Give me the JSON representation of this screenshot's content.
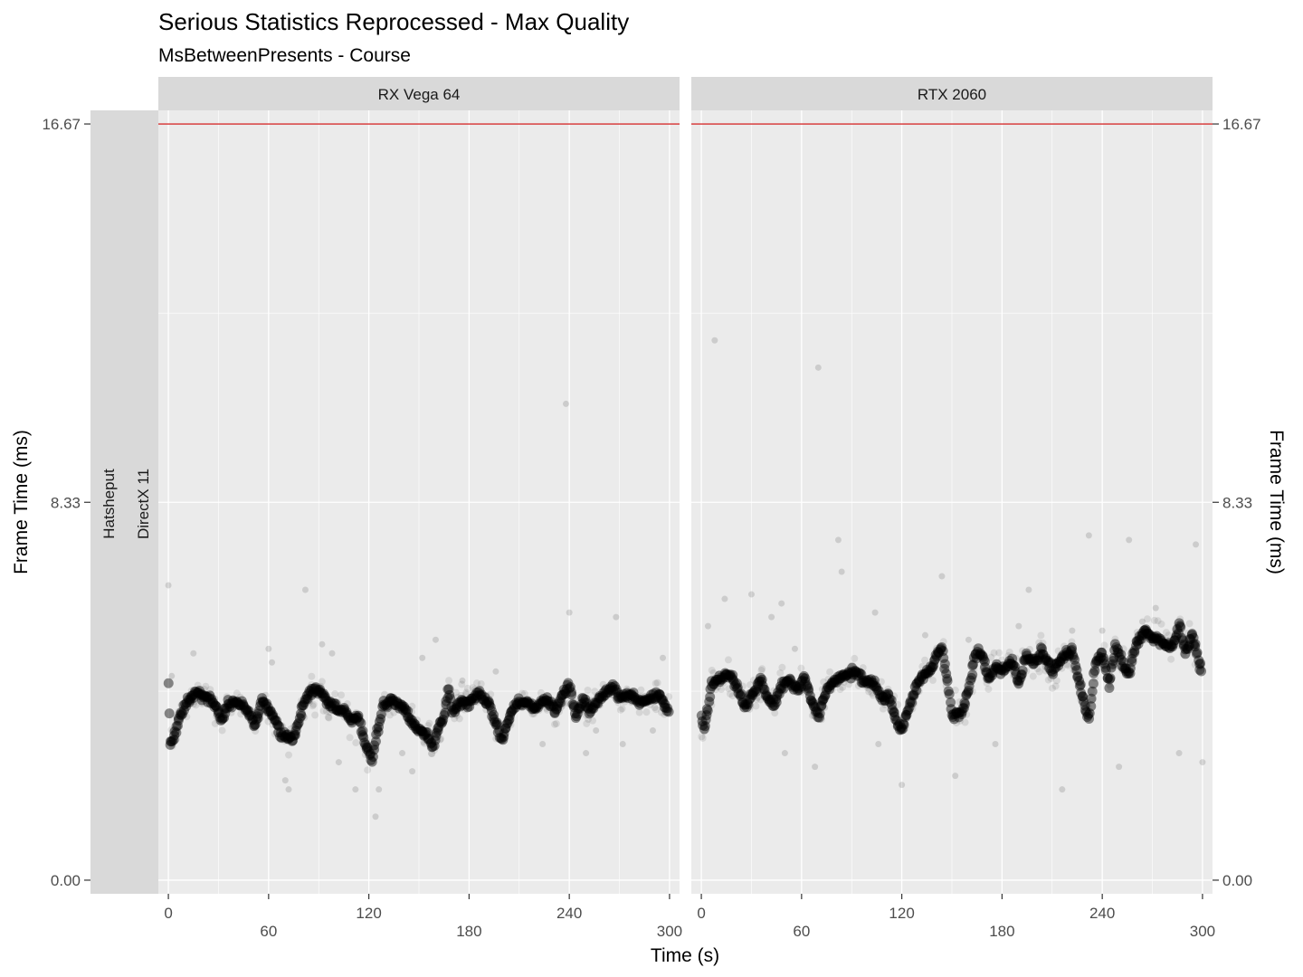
{
  "chart_data": {
    "type": "scatter",
    "title": "Serious Statistics Reprocessed - Max Quality",
    "subtitle": "MsBetweenPresents - Course",
    "xlabel": "Time (s)",
    "ylabel": "Frame Time (ms)",
    "ylabel_right": "Frame Time (ms)",
    "xlim": [
      -6,
      306
    ],
    "ylim": [
      -0.3,
      16.97
    ],
    "x_ticks": [
      "0",
      "60",
      "120",
      "180",
      "240",
      "300"
    ],
    "y_ticks": [
      "0.00",
      "8.33",
      "16.67"
    ],
    "reference_line": {
      "y": 16.67,
      "color": "#cc0000"
    },
    "row_strip": [
      "Hatsheput",
      "DirectX 11"
    ],
    "point_color": "#000000",
    "panels": [
      {
        "name": "RX Vega 64",
        "trend": [
          [
            0,
            4.3
          ],
          [
            1,
            3.0
          ],
          [
            3,
            3.1
          ],
          [
            5,
            3.4
          ],
          [
            8,
            3.7
          ],
          [
            12,
            4.0
          ],
          [
            18,
            4.1
          ],
          [
            24,
            4.0
          ],
          [
            28,
            3.9
          ],
          [
            32,
            3.5
          ],
          [
            36,
            3.9
          ],
          [
            42,
            3.9
          ],
          [
            48,
            3.7
          ],
          [
            52,
            3.4
          ],
          [
            56,
            4.0
          ],
          [
            60,
            3.8
          ],
          [
            64,
            3.5
          ],
          [
            68,
            3.2
          ],
          [
            72,
            3.1
          ],
          [
            76,
            3.2
          ],
          [
            80,
            3.8
          ],
          [
            84,
            4.1
          ],
          [
            90,
            4.2
          ],
          [
            96,
            3.9
          ],
          [
            100,
            3.8
          ],
          [
            106,
            3.7
          ],
          [
            110,
            3.5
          ],
          [
            114,
            3.6
          ],
          [
            118,
            3.0
          ],
          [
            122,
            2.6
          ],
          [
            124,
            3.1
          ],
          [
            128,
            3.8
          ],
          [
            134,
            4.0
          ],
          [
            140,
            3.8
          ],
          [
            146,
            3.5
          ],
          [
            150,
            3.3
          ],
          [
            155,
            3.2
          ],
          [
            158,
            2.9
          ],
          [
            160,
            3.2
          ],
          [
            164,
            3.5
          ],
          [
            168,
            4.2
          ],
          [
            170,
            3.7
          ],
          [
            174,
            3.9
          ],
          [
            180,
            3.9
          ],
          [
            186,
            4.1
          ],
          [
            192,
            3.9
          ],
          [
            196,
            3.4
          ],
          [
            200,
            3.1
          ],
          [
            204,
            3.6
          ],
          [
            208,
            3.9
          ],
          [
            214,
            3.9
          ],
          [
            220,
            3.8
          ],
          [
            226,
            4.0
          ],
          [
            232,
            3.7
          ],
          [
            236,
            4.1
          ],
          [
            240,
            4.3
          ],
          [
            244,
            3.6
          ],
          [
            248,
            4.0
          ],
          [
            252,
            3.7
          ],
          [
            256,
            3.9
          ],
          [
            260,
            4.1
          ],
          [
            266,
            4.3
          ],
          [
            270,
            4.0
          ],
          [
            276,
            4.1
          ],
          [
            282,
            3.9
          ],
          [
            288,
            4.0
          ],
          [
            294,
            4.1
          ],
          [
            300,
            3.7
          ]
        ],
        "outliers": [
          [
            0,
            6.5
          ],
          [
            2,
            4.5
          ],
          [
            15,
            5.0
          ],
          [
            28,
            4.0
          ],
          [
            60,
            5.1
          ],
          [
            62,
            4.8
          ],
          [
            70,
            2.2
          ],
          [
            72,
            2.0
          ],
          [
            82,
            6.4
          ],
          [
            92,
            5.2
          ],
          [
            98,
            5.0
          ],
          [
            102,
            2.6
          ],
          [
            106,
            3.6
          ],
          [
            112,
            2.0
          ],
          [
            124,
            1.4
          ],
          [
            126,
            2.0
          ],
          [
            140,
            2.8
          ],
          [
            146,
            2.4
          ],
          [
            152,
            4.9
          ],
          [
            160,
            5.3
          ],
          [
            176,
            4.4
          ],
          [
            196,
            4.6
          ],
          [
            224,
            3.0
          ],
          [
            238,
            10.5
          ],
          [
            240,
            5.9
          ],
          [
            250,
            2.8
          ],
          [
            256,
            3.3
          ],
          [
            268,
            5.8
          ],
          [
            272,
            3.0
          ],
          [
            290,
            3.3
          ],
          [
            296,
            4.9
          ]
        ]
      },
      {
        "name": "RTX 2060",
        "trend": [
          [
            0,
            3.6
          ],
          [
            2,
            3.4
          ],
          [
            4,
            3.8
          ],
          [
            6,
            4.3
          ],
          [
            10,
            4.4
          ],
          [
            14,
            4.5
          ],
          [
            18,
            4.5
          ],
          [
            22,
            4.2
          ],
          [
            26,
            3.8
          ],
          [
            30,
            4.1
          ],
          [
            36,
            4.4
          ],
          [
            40,
            4.0
          ],
          [
            44,
            3.9
          ],
          [
            48,
            4.3
          ],
          [
            52,
            4.4
          ],
          [
            58,
            4.2
          ],
          [
            62,
            4.5
          ],
          [
            66,
            3.9
          ],
          [
            70,
            3.6
          ],
          [
            72,
            3.9
          ],
          [
            76,
            4.2
          ],
          [
            80,
            4.4
          ],
          [
            86,
            4.5
          ],
          [
            92,
            4.6
          ],
          [
            98,
            4.4
          ],
          [
            104,
            4.3
          ],
          [
            108,
            4.0
          ],
          [
            112,
            4.1
          ],
          [
            116,
            3.6
          ],
          [
            120,
            3.3
          ],
          [
            124,
            3.8
          ],
          [
            130,
            4.4
          ],
          [
            136,
            4.6
          ],
          [
            140,
            4.9
          ],
          [
            144,
            5.1
          ],
          [
            148,
            4.2
          ],
          [
            150,
            3.6
          ],
          [
            156,
            3.7
          ],
          [
            160,
            4.2
          ],
          [
            164,
            5.0
          ],
          [
            168,
            5.0
          ],
          [
            172,
            4.4
          ],
          [
            176,
            4.7
          ],
          [
            180,
            4.6
          ],
          [
            186,
            4.9
          ],
          [
            190,
            4.3
          ],
          [
            194,
            4.9
          ],
          [
            200,
            4.8
          ],
          [
            204,
            5.1
          ],
          [
            210,
            4.6
          ],
          [
            216,
            4.9
          ],
          [
            222,
            5.1
          ],
          [
            226,
            4.4
          ],
          [
            230,
            3.8
          ],
          [
            232,
            3.5
          ],
          [
            236,
            4.8
          ],
          [
            240,
            5.0
          ],
          [
            244,
            4.3
          ],
          [
            248,
            5.2
          ],
          [
            252,
            4.8
          ],
          [
            256,
            4.5
          ],
          [
            260,
            5.2
          ],
          [
            266,
            5.5
          ],
          [
            270,
            5.3
          ],
          [
            274,
            5.3
          ],
          [
            278,
            5.2
          ],
          [
            282,
            5.1
          ],
          [
            286,
            5.6
          ],
          [
            290,
            5.0
          ],
          [
            294,
            5.4
          ],
          [
            298,
            4.8
          ],
          [
            300,
            4.6
          ]
        ],
        "outliers": [
          [
            4,
            5.6
          ],
          [
            8,
            11.9
          ],
          [
            14,
            6.2
          ],
          [
            30,
            6.3
          ],
          [
            42,
            5.8
          ],
          [
            48,
            6.1
          ],
          [
            50,
            2.8
          ],
          [
            56,
            5.1
          ],
          [
            68,
            2.5
          ],
          [
            70,
            11.3
          ],
          [
            74,
            3.8
          ],
          [
            82,
            7.5
          ],
          [
            84,
            6.8
          ],
          [
            104,
            5.9
          ],
          [
            106,
            3.0
          ],
          [
            120,
            2.1
          ],
          [
            134,
            5.4
          ],
          [
            144,
            6.7
          ],
          [
            152,
            2.3
          ],
          [
            160,
            5.3
          ],
          [
            176,
            3.0
          ],
          [
            190,
            5.6
          ],
          [
            196,
            6.4
          ],
          [
            216,
            2.0
          ],
          [
            222,
            5.5
          ],
          [
            232,
            7.6
          ],
          [
            240,
            5.5
          ],
          [
            250,
            2.5
          ],
          [
            256,
            7.5
          ],
          [
            264,
            5.7
          ],
          [
            272,
            6.0
          ],
          [
            286,
            2.8
          ],
          [
            296,
            7.4
          ],
          [
            300,
            2.6
          ]
        ]
      }
    ]
  }
}
